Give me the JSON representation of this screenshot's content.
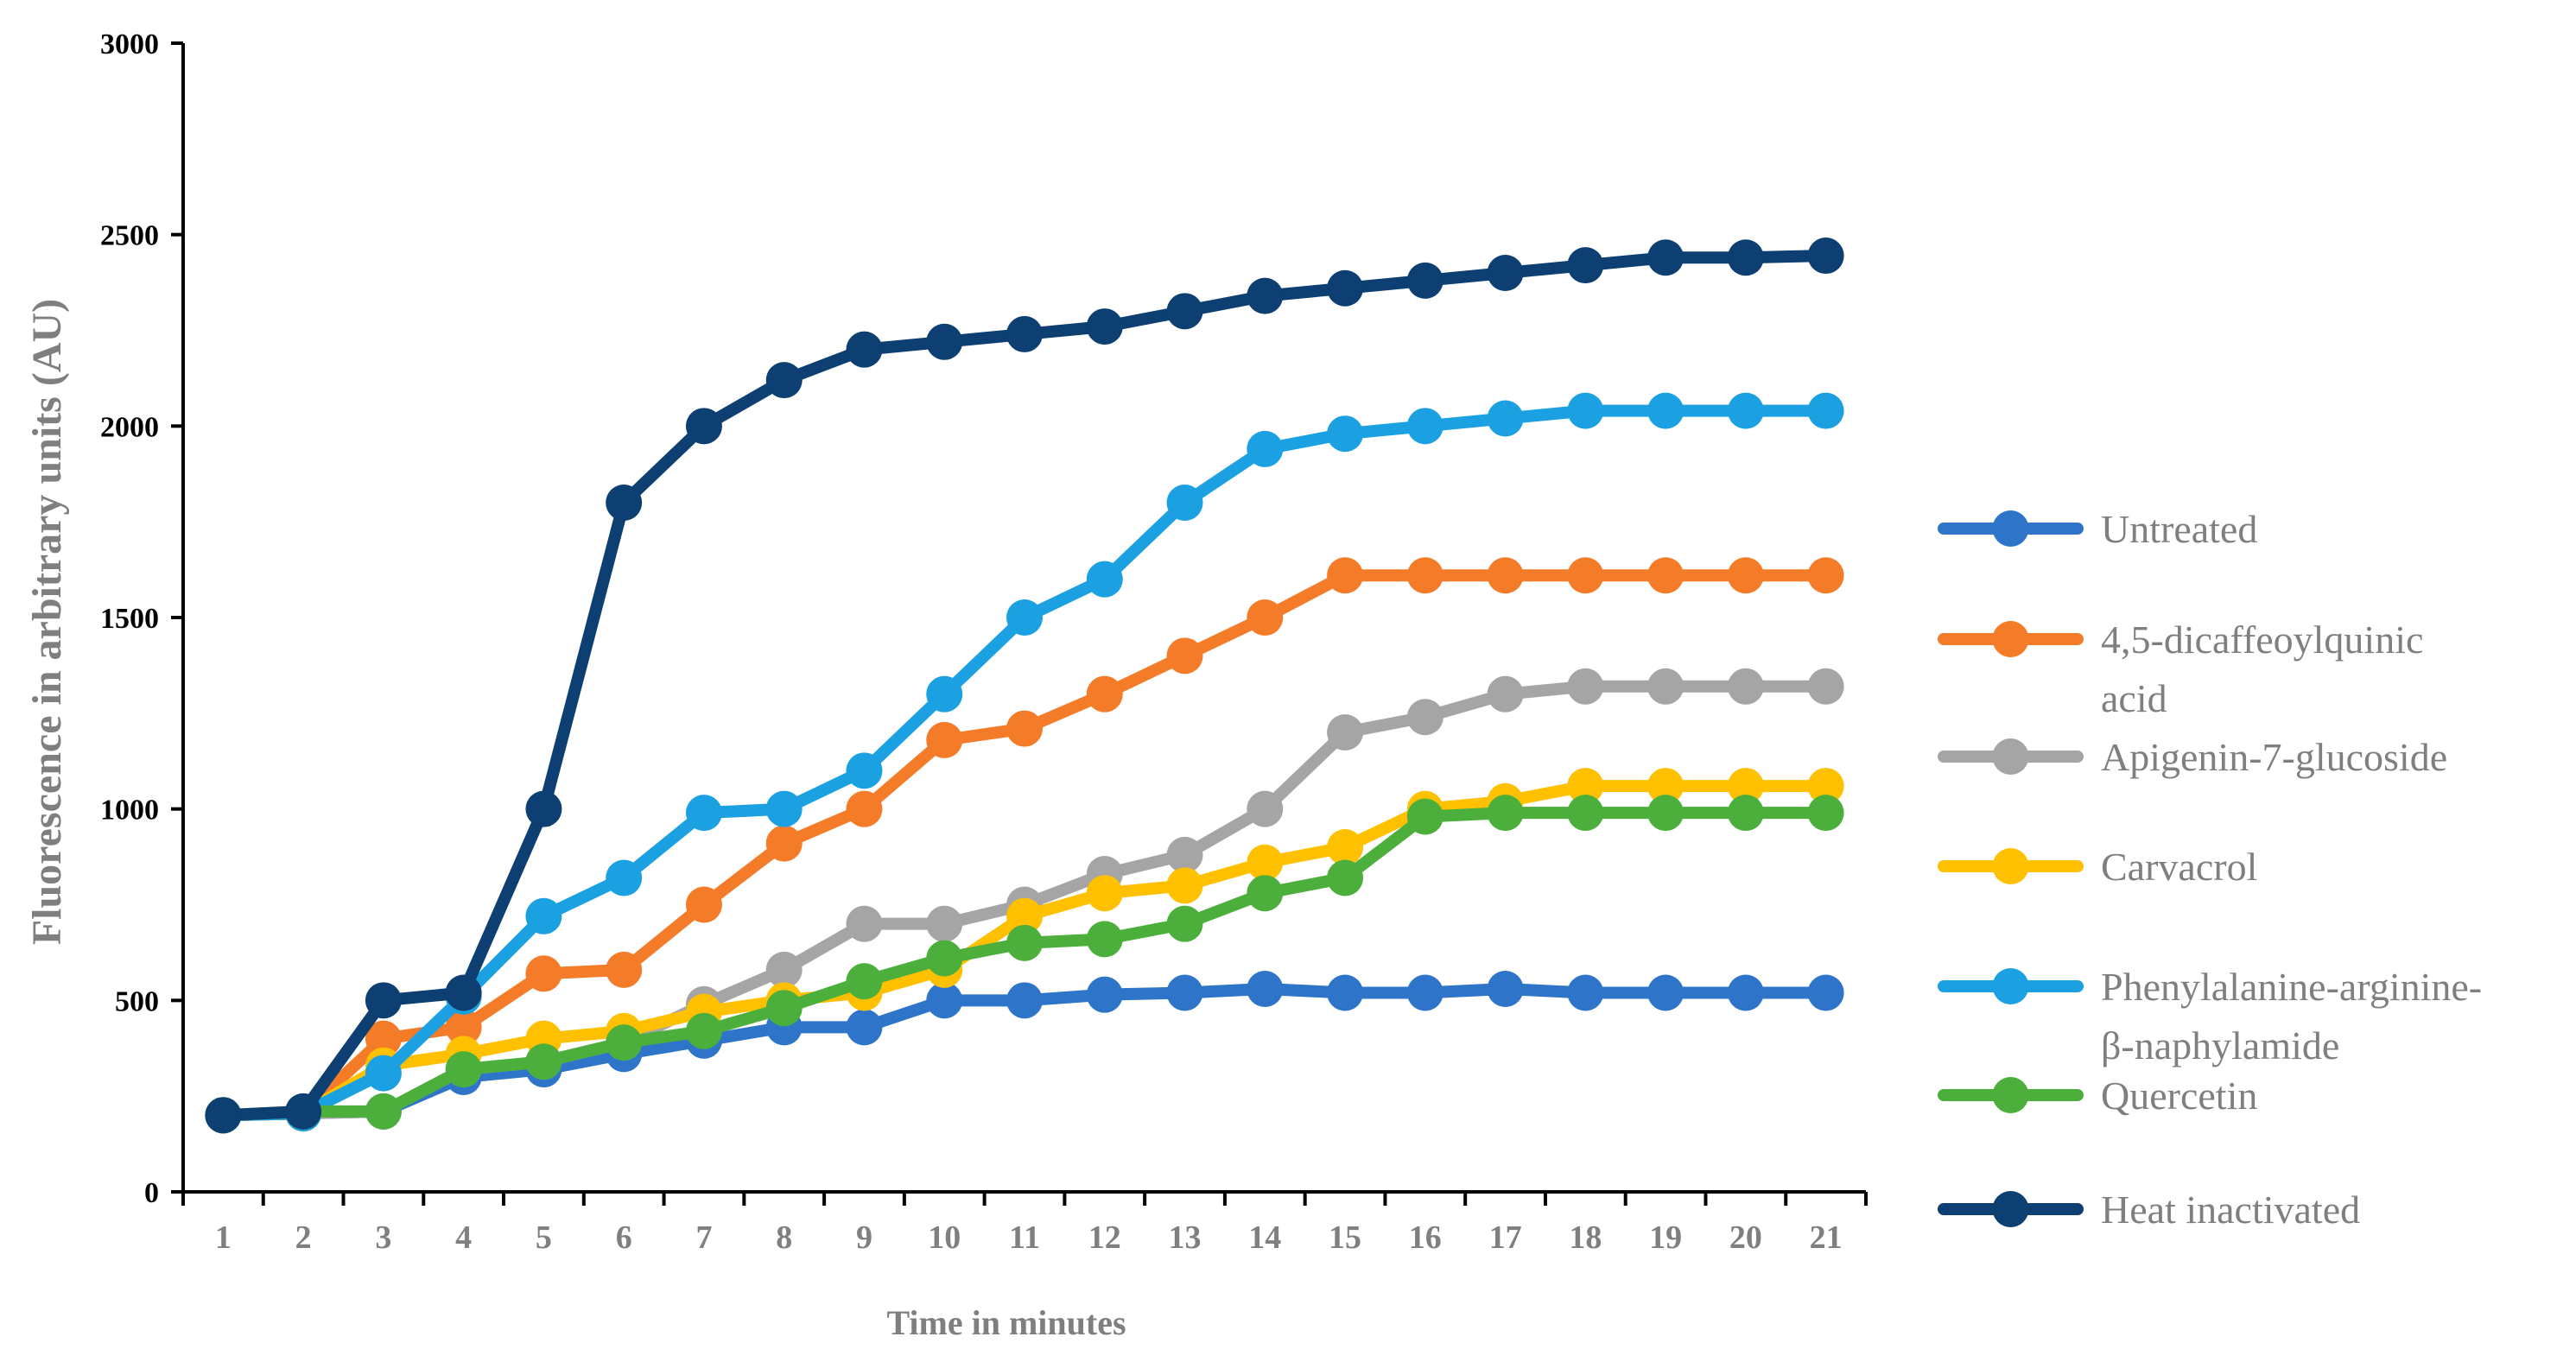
{
  "chart_data": {
    "type": "line",
    "title": "",
    "xlabel": "Time in minutes",
    "ylabel": "Fluorescence in arbitrary units (AU)",
    "categories": [
      "1",
      "2",
      "3",
      "4",
      "5",
      "6",
      "7",
      "8",
      "9",
      "10",
      "11",
      "12",
      "13",
      "14",
      "15",
      "16",
      "17",
      "18",
      "19",
      "20",
      "21"
    ],
    "ylim": [
      0,
      3000
    ],
    "yticks": [
      "0",
      "500",
      "1000",
      "1500",
      "2000",
      "2500",
      "3000"
    ],
    "ytick_values": [
      0,
      500,
      1000,
      1500,
      2000,
      2500,
      3000
    ],
    "grid": false,
    "legend_position": "right",
    "series": [
      {
        "name": "Untreated",
        "legend_lines": [
          "Untreated"
        ],
        "color": "#2e75c9",
        "values": [
          200,
          205,
          210,
          300,
          320,
          360,
          395,
          430,
          430,
          500,
          500,
          515,
          520,
          530,
          520,
          520,
          530,
          520,
          520,
          520,
          520
        ]
      },
      {
        "name": "4,5-dicaffeoylquinic acid",
        "legend_lines": [
          "4,5-dicaffeoylquinic",
          "acid"
        ],
        "color": "#f47b28",
        "values": [
          200,
          205,
          400,
          430,
          570,
          580,
          750,
          910,
          1000,
          1180,
          1210,
          1300,
          1400,
          1500,
          1610,
          1610,
          1610,
          1610,
          1610,
          1610,
          1610
        ]
      },
      {
        "name": "Apigenin-7-glucoside",
        "legend_lines": [
          "Apigenin-7-glucoside"
        ],
        "color": "#a5a5a5",
        "values": [
          200,
          205,
          210,
          320,
          340,
          390,
          490,
          580,
          700,
          700,
          750,
          830,
          880,
          1000,
          1200,
          1240,
          1300,
          1320,
          1320,
          1320,
          1320
        ]
      },
      {
        "name": "Carvacrol",
        "legend_lines": [
          "Carvacrol"
        ],
        "color": "#ffc000",
        "values": [
          200,
          205,
          330,
          360,
          400,
          420,
          470,
          500,
          520,
          580,
          720,
          780,
          800,
          860,
          900,
          1000,
          1020,
          1060,
          1060,
          1060,
          1060
        ]
      },
      {
        "name": "Phenylalanine-arginine-β-naphylamide",
        "legend_lines": [
          "Phenylalanine-arginine-",
          "β-naphylamide"
        ],
        "color": "#1ba1e2",
        "values": [
          200,
          205,
          310,
          510,
          720,
          820,
          990,
          1000,
          1100,
          1300,
          1500,
          1600,
          1800,
          1940,
          1980,
          2000,
          2020,
          2040,
          2040,
          2040,
          2040
        ]
      },
      {
        "name": "Quercetin",
        "legend_lines": [
          "Quercetin"
        ],
        "color": "#4caf3c",
        "values": [
          200,
          210,
          210,
          320,
          340,
          390,
          420,
          480,
          550,
          610,
          650,
          660,
          700,
          780,
          820,
          980,
          990,
          990,
          990,
          990,
          990
        ]
      },
      {
        "name": "Heat inactivated",
        "legend_lines": [
          "Heat inactivated"
        ],
        "color": "#0d3f72",
        "values": [
          200,
          210,
          500,
          520,
          1000,
          1800,
          2000,
          2120,
          2200,
          2220,
          2240,
          2260,
          2300,
          2340,
          2360,
          2380,
          2400,
          2420,
          2440,
          2440,
          2445
        ]
      }
    ]
  }
}
